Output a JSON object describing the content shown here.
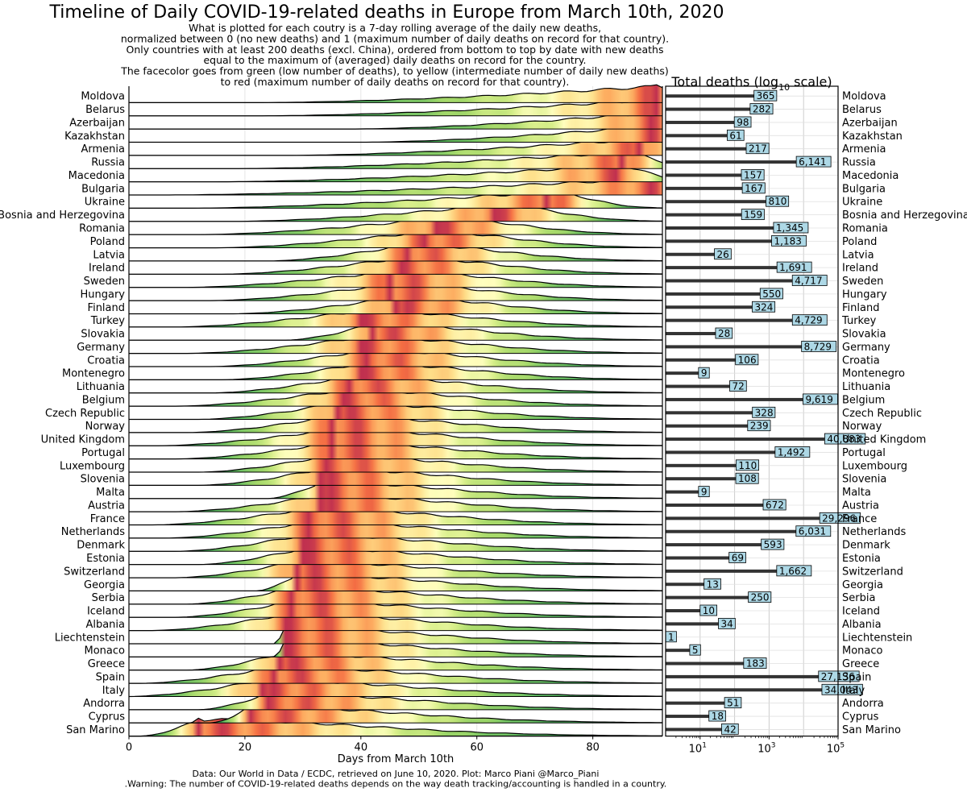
{
  "title": "Timeline of Daily COVID-19-related deaths in Europe from March 10th, 2020",
  "subtitle_lines": [
    "What is plotted for each coutry is a 7-day rolling average of the daily new deaths,",
    "normalized between 0 (no new deaths) and 1 (maximum number of daily deaths on record for that country).",
    "Only countries with at least 200 deaths (excl. China), ordered from bottom to top by date with new deaths",
    "equal to the maximum of (averaged) daily deaths on record for the country.",
    "The facecolor goes from green (low number of deaths), to yellow (intermediate number of daily new deaths)",
    "to red (maximum number of daily deaths on record for that country)."
  ],
  "footer_lines": [
    "Data: Our World in Data / ECDC, retrieved on June 10, 2020. Plot: Marco Piani @Marco_Piani",
    ".Warning: The number of COVID-19-related deaths depends on the way death tracking/accounting is handled in a country."
  ],
  "colors": {
    "low": "#1a9850",
    "mid": "#ffffbf",
    "high": "#c0304f",
    "bar": "#333333",
    "label_box": "#add8e6",
    "grid": "#cccccc"
  },
  "chart_data": [
    {
      "type": "area",
      "title": "",
      "xlabel": "Days from March 10th",
      "ylabel": "",
      "xlim": [
        0,
        92
      ],
      "xticks": [
        0,
        20,
        40,
        60,
        80
      ],
      "series_type": "ridgeline",
      "countries": [
        {
          "name": "Moldova",
          "peak_day": 91,
          "start_day": 22
        },
        {
          "name": "Belarus",
          "peak_day": 91,
          "start_day": 23
        },
        {
          "name": "Azerbaijan",
          "peak_day": 90,
          "start_day": 38
        },
        {
          "name": "Kazakhstan",
          "peak_day": 90,
          "start_day": 40
        },
        {
          "name": "Armenia",
          "peak_day": 88,
          "start_day": 27
        },
        {
          "name": "Russia",
          "peak_day": 85,
          "start_day": 18
        },
        {
          "name": "Macedonia",
          "peak_day": 84,
          "start_day": 15
        },
        {
          "name": "Bulgaria",
          "peak_day": 90,
          "start_day": 5
        },
        {
          "name": "Ukraine",
          "peak_day": 72,
          "start_day": 10
        },
        {
          "name": "Bosnia and Herzegovina",
          "peak_day": 63,
          "start_day": 18
        },
        {
          "name": "Romania",
          "peak_day": 53,
          "start_day": 12
        },
        {
          "name": "Poland",
          "peak_day": 51,
          "start_day": 15
        },
        {
          "name": "Latvia",
          "peak_day": 48,
          "start_day": 24
        },
        {
          "name": "Ireland",
          "peak_day": 47,
          "start_day": 16
        },
        {
          "name": "Sweden",
          "peak_day": 45,
          "start_day": 10
        },
        {
          "name": "Hungary",
          "peak_day": 45,
          "start_day": 14
        },
        {
          "name": "Finland",
          "peak_day": 46,
          "start_day": 18
        },
        {
          "name": "Turkey",
          "peak_day": 40,
          "start_day": 8
        },
        {
          "name": "Slovakia",
          "peak_day": 42,
          "start_day": 27
        },
        {
          "name": "Germany",
          "peak_day": 40,
          "start_day": 10
        },
        {
          "name": "Croatia",
          "peak_day": 41,
          "start_day": 14
        },
        {
          "name": "Montenegro",
          "peak_day": 40,
          "start_day": 16
        },
        {
          "name": "Lithuania",
          "peak_day": 38,
          "start_day": 14
        },
        {
          "name": "Belgium",
          "peak_day": 37,
          "start_day": 8
        },
        {
          "name": "Czech Republic",
          "peak_day": 36,
          "start_day": 12
        },
        {
          "name": "Norway",
          "peak_day": 35,
          "start_day": 10
        },
        {
          "name": "United Kingdom",
          "peak_day": 35,
          "start_day": 5
        },
        {
          "name": "Portugal",
          "peak_day": 35,
          "start_day": 8
        },
        {
          "name": "Luxembourg",
          "peak_day": 34,
          "start_day": 12
        },
        {
          "name": "Slovenia",
          "peak_day": 33,
          "start_day": 12
        },
        {
          "name": "Malta",
          "peak_day": 33,
          "start_day": 24
        },
        {
          "name": "Austria",
          "peak_day": 33,
          "start_day": 8
        },
        {
          "name": "France",
          "peak_day": 31,
          "start_day": 4
        },
        {
          "name": "Netherlands",
          "peak_day": 31,
          "start_day": 6
        },
        {
          "name": "Denmark",
          "peak_day": 30,
          "start_day": 8
        },
        {
          "name": "Estonia",
          "peak_day": 30,
          "start_day": 12
        },
        {
          "name": "Switzerland",
          "peak_day": 29,
          "start_day": 8
        },
        {
          "name": "Georgia",
          "peak_day": 29,
          "start_day": 22
        },
        {
          "name": "Serbia",
          "peak_day": 28,
          "start_day": 10
        },
        {
          "name": "Iceland",
          "peak_day": 28,
          "start_day": 8
        },
        {
          "name": "Albania",
          "peak_day": 27,
          "start_day": 4
        },
        {
          "name": "Liechtenstein",
          "peak_day": 27,
          "start_day": 25
        },
        {
          "name": "Monaco",
          "peak_day": 27,
          "start_day": 25
        },
        {
          "name": "Greece",
          "peak_day": 26,
          "start_day": 10
        },
        {
          "name": "Spain",
          "peak_day": 25,
          "start_day": 2
        },
        {
          "name": "Italy",
          "peak_day": 23,
          "start_day": 0
        },
        {
          "name": "Andorra",
          "peak_day": 24,
          "start_day": 12
        },
        {
          "name": "Cyprus",
          "peak_day": 21,
          "start_day": 14
        },
        {
          "name": "San Marino",
          "peak_day": 12,
          "start_day": 2
        }
      ]
    },
    {
      "type": "bar",
      "orientation": "horizontal",
      "title": "Total deaths (log10 scale)",
      "title_main": "Total deaths (log",
      "title_sub": "10",
      "title_end": " scale)",
      "xscale": "log",
      "xlim": [
        1,
        100000
      ],
      "xticks": [
        {
          "base": "10",
          "exp": "1"
        },
        {
          "base": "10",
          "exp": "3"
        },
        {
          "base": "10",
          "exp": "5"
        }
      ],
      "categories": [
        "Moldova",
        "Belarus",
        "Azerbaijan",
        "Kazakhstan",
        "Armenia",
        "Russia",
        "Macedonia",
        "Bulgaria",
        "Ukraine",
        "Bosnia and Herzegovina",
        "Romania",
        "Poland",
        "Latvia",
        "Ireland",
        "Sweden",
        "Hungary",
        "Finland",
        "Turkey",
        "Slovakia",
        "Germany",
        "Croatia",
        "Montenegro",
        "Lithuania",
        "Belgium",
        "Czech Republic",
        "Norway",
        "United Kingdom",
        "Portugal",
        "Luxembourg",
        "Slovenia",
        "Malta",
        "Austria",
        "France",
        "Netherlands",
        "Denmark",
        "Estonia",
        "Switzerland",
        "Georgia",
        "Serbia",
        "Iceland",
        "Albania",
        "Liechtenstein",
        "Monaco",
        "Greece",
        "Spain",
        "Italy",
        "Andorra",
        "Cyprus",
        "San Marino"
      ],
      "values": [
        365,
        282,
        98,
        61,
        217,
        6141,
        157,
        167,
        810,
        159,
        1345,
        1183,
        26,
        1691,
        4717,
        550,
        324,
        4729,
        28,
        8729,
        106,
        9,
        72,
        9619,
        328,
        239,
        40883,
        1492,
        110,
        108,
        9,
        672,
        29296,
        6031,
        593,
        69,
        1662,
        13,
        250,
        10,
        34,
        1,
        5,
        183,
        27136,
        34043,
        51,
        18,
        42
      ],
      "labels": [
        "365",
        "282",
        "98",
        "61",
        "217",
        "6,141",
        "157",
        "167",
        "810",
        "159",
        "1,345",
        "1,183",
        "26",
        "1,691",
        "4,717",
        "550",
        "324",
        "4,729",
        "28",
        "8,729",
        "106",
        "9",
        "72",
        "9,619",
        "328",
        "239",
        "40,883",
        "1,492",
        "110",
        "108",
        "9",
        "672",
        "29,296",
        "6,031",
        "593",
        "69",
        "1,662",
        "13",
        "250",
        "10",
        "34",
        "1",
        "5",
        "183",
        "27,136",
        "34,043",
        "51",
        "18",
        "42"
      ]
    }
  ]
}
